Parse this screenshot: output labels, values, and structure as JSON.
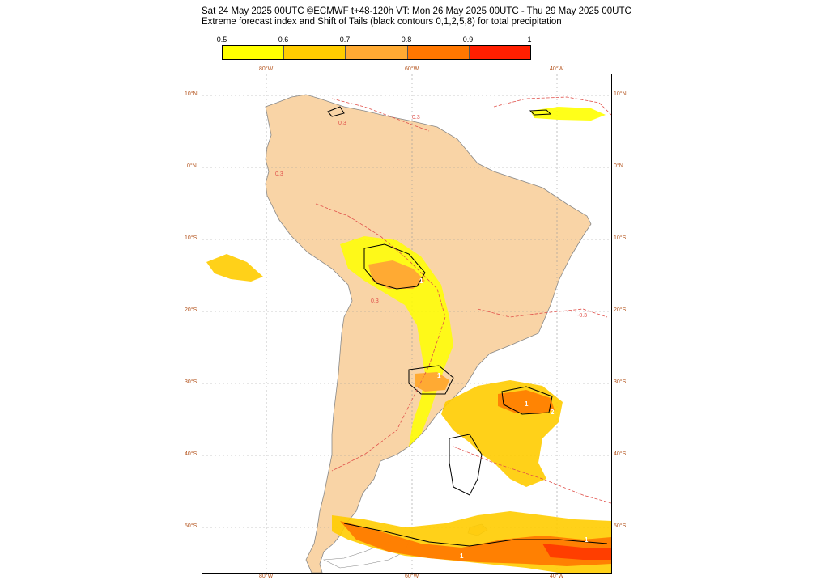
{
  "header": {
    "line1": "Sat 24 May 2025 00UTC ©ECMWF t+48-120h  VT: Mon 26 May 2025 00UTC - Thu 29 May 2025 00UTC",
    "line2": "Extreme forecast index and Shift of Tails (black contours 0,1,2,5,8) for total precipitation"
  },
  "legend": {
    "labels": [
      "0.5",
      "0.6",
      "0.7",
      "0.8",
      "0.9",
      "1"
    ],
    "colors": [
      "#ffff00",
      "#ffcc00",
      "#ffaa33",
      "#ff7700",
      "#ff1f00"
    ]
  },
  "map": {
    "land_color": "#f9d4a6",
    "efi_labels": [
      "0.3",
      "0.3",
      "0.3",
      "0.3",
      "-0.3"
    ],
    "sot_labels": [
      "1",
      "1",
      "1",
      "2",
      "1",
      "1"
    ],
    "lon_labels_top": [
      "80°W",
      "60°W",
      "40°W"
    ],
    "lon_labels_bottom": [
      "80°W",
      "60°W",
      "40°W"
    ],
    "lat_labels_left": [
      "10°N",
      "0°N",
      "10°S",
      "20°S",
      "30°S",
      "40°S",
      "50°S"
    ],
    "lat_labels_right": [
      "10°N",
      "0°N",
      "10°S",
      "20°S",
      "30°S",
      "40°S",
      "50°S"
    ]
  }
}
